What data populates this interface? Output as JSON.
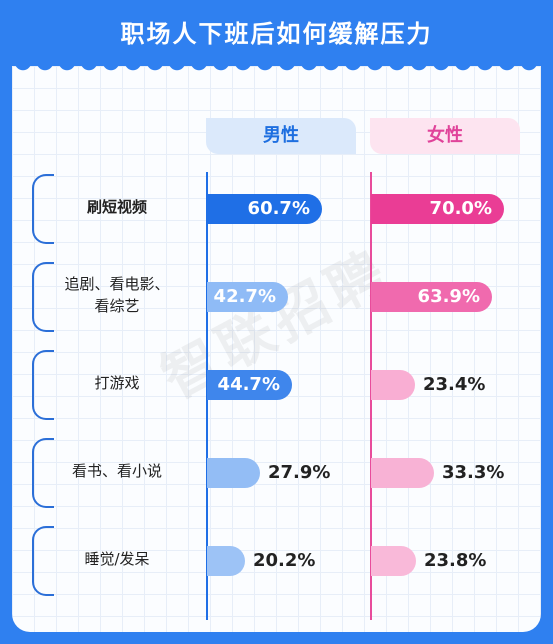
{
  "title": "职场人下班后如何缓解压力",
  "watermark": "智联招聘",
  "chart_data": {
    "type": "bar",
    "orientation": "horizontal",
    "categories": [
      "刷短视频",
      "追剧、看电影、看综艺",
      "打游戏",
      "看书、看小说",
      "睡觉/发呆"
    ],
    "category_lines": [
      [
        "刷短视频"
      ],
      [
        "追剧、看电影、",
        "看综艺"
      ],
      [
        "打游戏"
      ],
      [
        "看书、看小说"
      ],
      [
        "睡觉/发呆"
      ]
    ],
    "series": [
      {
        "name": "男性",
        "values": [
          60.7,
          42.7,
          44.7,
          27.9,
          20.2
        ],
        "labels": [
          "60.7%",
          "42.7%",
          "44.7%",
          "27.9%",
          "20.2%"
        ],
        "colors": [
          "#1f6fe6",
          "#8fbbf6",
          "#3f86ec",
          "#93bdf5",
          "#9dc3f6"
        ]
      },
      {
        "name": "女性",
        "values": [
          70.0,
          63.9,
          23.4,
          33.3,
          23.8
        ],
        "labels": [
          "70.0%",
          "63.9%",
          "23.4%",
          "33.3%",
          "23.8%"
        ],
        "colors": [
          "#ea3d95",
          "#f06aae",
          "#f9aed3",
          "#f8b2d5",
          "#f9b9d9"
        ]
      }
    ],
    "xlim": [
      0,
      100
    ],
    "grid": true
  }
}
